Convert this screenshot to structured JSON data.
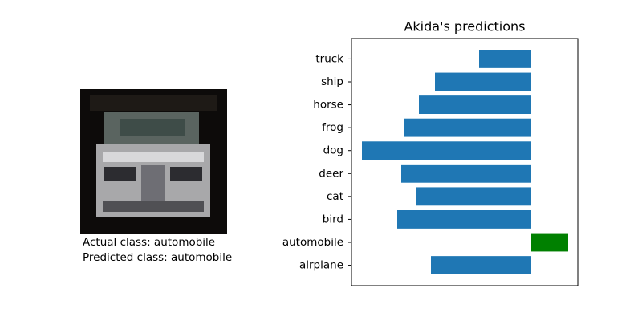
{
  "captions": [
    "Actual class: automobile",
    "Predicted class: automobile"
  ],
  "chart_data": {
    "type": "barh",
    "title": "Akida's predictions",
    "categories": [
      "airplane",
      "automobile",
      "bird",
      "cat",
      "deer",
      "dog",
      "frog",
      "horse",
      "ship",
      "truck"
    ],
    "values": [
      -12.5,
      4.6,
      -16.7,
      -14.3,
      -16.2,
      -21.1,
      -15.9,
      -14.0,
      -12.0,
      -6.5
    ],
    "colors": [
      "#1f77b4",
      "#008000",
      "#1f77b4",
      "#1f77b4",
      "#1f77b4",
      "#1f77b4",
      "#1f77b4",
      "#1f77b4",
      "#1f77b4",
      "#1f77b4"
    ],
    "xlim": [
      -22.4,
      5.8
    ]
  }
}
